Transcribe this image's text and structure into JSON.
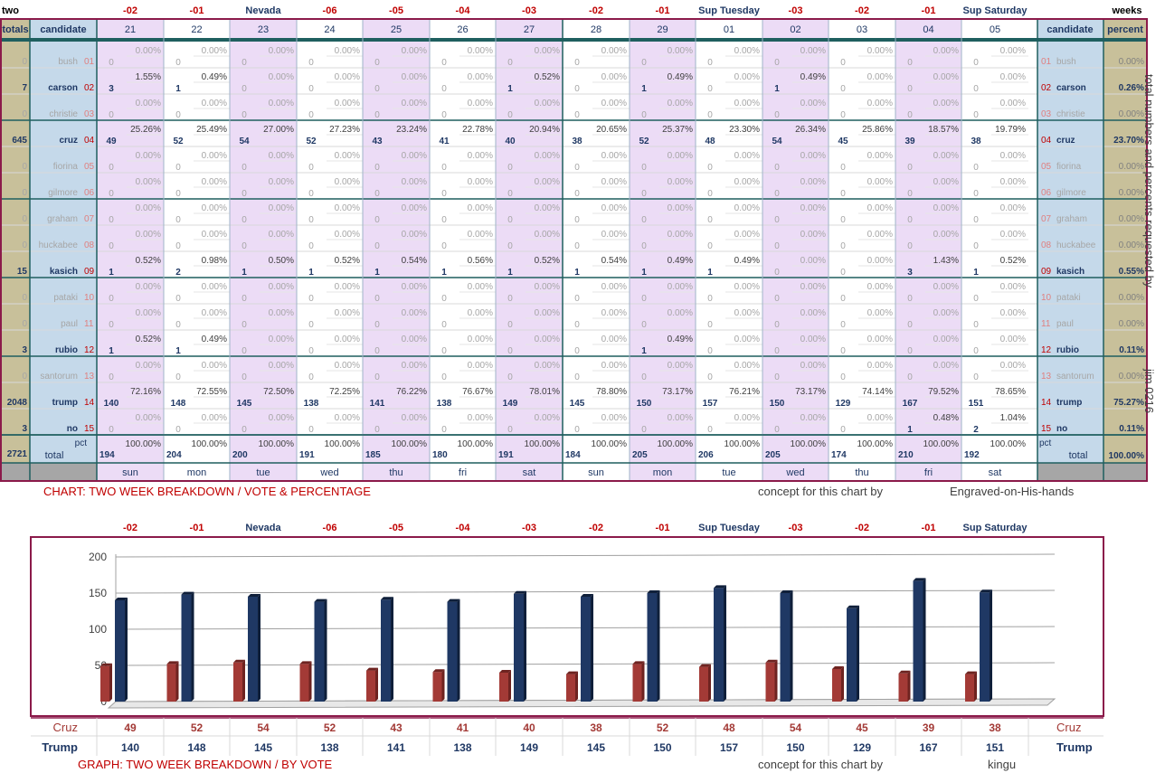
{
  "top_left_label": "two",
  "top_right_label": "weeks",
  "day_headers": [
    "-02",
    "-01",
    "Nevada",
    "-06",
    "-05",
    "-04",
    "-03",
    "-02",
    "-01",
    "Sup Tuesday",
    "-03",
    "-02",
    "-01",
    "Sup Saturday"
  ],
  "day_numbers": [
    "21",
    "22",
    "23",
    "24",
    "25",
    "26",
    "27",
    "28",
    "29",
    "01",
    "02",
    "03",
    "04",
    "05"
  ],
  "weekdays": [
    "sun",
    "mon",
    "tue",
    "wed",
    "thu",
    "fri",
    "sat",
    "sun",
    "mon",
    "tue",
    "wed",
    "thu",
    "fri",
    "sat"
  ],
  "col_headers": {
    "totals": "totals",
    "candidate": "candidate",
    "candidate_right": "candidate",
    "percent": "percent"
  },
  "candidates": [
    {
      "name": "bush",
      "num": "01",
      "total": "0",
      "percent": "0.00%",
      "active": false,
      "votes": [
        "0",
        "0",
        "0",
        "0",
        "0",
        "0",
        "0",
        "0",
        "0",
        "0",
        "0",
        "0",
        "0",
        "0"
      ],
      "pcts": [
        "0.00%",
        "0.00%",
        "0.00%",
        "0.00%",
        "0.00%",
        "0.00%",
        "0.00%",
        "0.00%",
        "0.00%",
        "0.00%",
        "0.00%",
        "0.00%",
        "0.00%",
        "0.00%"
      ]
    },
    {
      "name": "carson",
      "num": "02",
      "total": "7",
      "percent": "0.26%",
      "active": true,
      "votes": [
        "3",
        "1",
        "0",
        "0",
        "0",
        "0",
        "1",
        "0",
        "1",
        "0",
        "1",
        "0",
        "0",
        "0"
      ],
      "pcts": [
        "1.55%",
        "0.49%",
        "0.00%",
        "0.00%",
        "0.00%",
        "0.00%",
        "0.52%",
        "0.00%",
        "0.49%",
        "0.00%",
        "0.49%",
        "0.00%",
        "0.00%",
        "0.00%"
      ]
    },
    {
      "name": "christie",
      "num": "03",
      "total": "0",
      "percent": "0.00%",
      "active": false,
      "votes": [
        "0",
        "0",
        "0",
        "0",
        "0",
        "0",
        "0",
        "0",
        "0",
        "0",
        "0",
        "0",
        "0",
        "0"
      ],
      "pcts": [
        "0.00%",
        "0.00%",
        "0.00%",
        "0.00%",
        "0.00%",
        "0.00%",
        "0.00%",
        "0.00%",
        "0.00%",
        "0.00%",
        "0.00%",
        "0.00%",
        "0.00%",
        "0.00%"
      ]
    },
    {
      "name": "cruz",
      "num": "04",
      "total": "645",
      "percent": "23.70%",
      "active": true,
      "votes": [
        "49",
        "52",
        "54",
        "52",
        "43",
        "41",
        "40",
        "38",
        "52",
        "48",
        "54",
        "45",
        "39",
        "38"
      ],
      "pcts": [
        "25.26%",
        "25.49%",
        "27.00%",
        "27.23%",
        "23.24%",
        "22.78%",
        "20.94%",
        "20.65%",
        "25.37%",
        "23.30%",
        "26.34%",
        "25.86%",
        "18.57%",
        "19.79%"
      ]
    },
    {
      "name": "fiorina",
      "num": "05",
      "total": "0",
      "percent": "0.00%",
      "active": false,
      "votes": [
        "0",
        "0",
        "0",
        "0",
        "0",
        "0",
        "0",
        "0",
        "0",
        "0",
        "0",
        "0",
        "0",
        "0"
      ],
      "pcts": [
        "0.00%",
        "0.00%",
        "0.00%",
        "0.00%",
        "0.00%",
        "0.00%",
        "0.00%",
        "0.00%",
        "0.00%",
        "0.00%",
        "0.00%",
        "0.00%",
        "0.00%",
        "0.00%"
      ]
    },
    {
      "name": "gilmore",
      "num": "06",
      "total": "0",
      "percent": "0.00%",
      "active": false,
      "votes": [
        "0",
        "0",
        "0",
        "0",
        "0",
        "0",
        "0",
        "0",
        "0",
        "0",
        "0",
        "0",
        "0",
        "0"
      ],
      "pcts": [
        "0.00%",
        "0.00%",
        "0.00%",
        "0.00%",
        "0.00%",
        "0.00%",
        "0.00%",
        "0.00%",
        "0.00%",
        "0.00%",
        "0.00%",
        "0.00%",
        "0.00%",
        "0.00%"
      ]
    },
    {
      "name": "graham",
      "num": "07",
      "total": "0",
      "percent": "0.00%",
      "active": false,
      "votes": [
        "0",
        "0",
        "0",
        "0",
        "0",
        "0",
        "0",
        "0",
        "0",
        "0",
        "0",
        "0",
        "0",
        "0"
      ],
      "pcts": [
        "0.00%",
        "0.00%",
        "0.00%",
        "0.00%",
        "0.00%",
        "0.00%",
        "0.00%",
        "0.00%",
        "0.00%",
        "0.00%",
        "0.00%",
        "0.00%",
        "0.00%",
        "0.00%"
      ]
    },
    {
      "name": "huckabee",
      "num": "08",
      "total": "0",
      "percent": "0.00%",
      "active": false,
      "votes": [
        "0",
        "0",
        "0",
        "0",
        "0",
        "0",
        "0",
        "0",
        "0",
        "0",
        "0",
        "0",
        "0",
        "0"
      ],
      "pcts": [
        "0.00%",
        "0.00%",
        "0.00%",
        "0.00%",
        "0.00%",
        "0.00%",
        "0.00%",
        "0.00%",
        "0.00%",
        "0.00%",
        "0.00%",
        "0.00%",
        "0.00%",
        "0.00%"
      ]
    },
    {
      "name": "kasich",
      "num": "09",
      "total": "15",
      "percent": "0.55%",
      "active": true,
      "votes": [
        "1",
        "2",
        "1",
        "1",
        "1",
        "1",
        "1",
        "1",
        "1",
        "1",
        "0",
        "0",
        "3",
        "1"
      ],
      "pcts": [
        "0.52%",
        "0.98%",
        "0.50%",
        "0.52%",
        "0.54%",
        "0.56%",
        "0.52%",
        "0.54%",
        "0.49%",
        "0.49%",
        "0.00%",
        "0.00%",
        "1.43%",
        "0.52%"
      ]
    },
    {
      "name": "pataki",
      "num": "10",
      "total": "0",
      "percent": "0.00%",
      "active": false,
      "votes": [
        "0",
        "0",
        "0",
        "0",
        "0",
        "0",
        "0",
        "0",
        "0",
        "0",
        "0",
        "0",
        "0",
        "0"
      ],
      "pcts": [
        "0.00%",
        "0.00%",
        "0.00%",
        "0.00%",
        "0.00%",
        "0.00%",
        "0.00%",
        "0.00%",
        "0.00%",
        "0.00%",
        "0.00%",
        "0.00%",
        "0.00%",
        "0.00%"
      ]
    },
    {
      "name": "paul",
      "num": "11",
      "total": "0",
      "percent": "0.00%",
      "active": false,
      "votes": [
        "0",
        "0",
        "0",
        "0",
        "0",
        "0",
        "0",
        "0",
        "0",
        "0",
        "0",
        "0",
        "0",
        "0"
      ],
      "pcts": [
        "0.00%",
        "0.00%",
        "0.00%",
        "0.00%",
        "0.00%",
        "0.00%",
        "0.00%",
        "0.00%",
        "0.00%",
        "0.00%",
        "0.00%",
        "0.00%",
        "0.00%",
        "0.00%"
      ]
    },
    {
      "name": "rubio",
      "num": "12",
      "total": "3",
      "percent": "0.11%",
      "active": true,
      "votes": [
        "1",
        "1",
        "0",
        "0",
        "0",
        "0",
        "0",
        "0",
        "1",
        "0",
        "0",
        "0",
        "0",
        "0"
      ],
      "pcts": [
        "0.52%",
        "0.49%",
        "0.00%",
        "0.00%",
        "0.00%",
        "0.00%",
        "0.00%",
        "0.00%",
        "0.49%",
        "0.00%",
        "0.00%",
        "0.00%",
        "0.00%",
        "0.00%"
      ]
    },
    {
      "name": "santorum",
      "num": "13",
      "total": "0",
      "percent": "0.00%",
      "active": false,
      "votes": [
        "0",
        "0",
        "0",
        "0",
        "0",
        "0",
        "0",
        "0",
        "0",
        "0",
        "0",
        "0",
        "0",
        "0"
      ],
      "pcts": [
        "0.00%",
        "0.00%",
        "0.00%",
        "0.00%",
        "0.00%",
        "0.00%",
        "0.00%",
        "0.00%",
        "0.00%",
        "0.00%",
        "0.00%",
        "0.00%",
        "0.00%",
        "0.00%"
      ]
    },
    {
      "name": "trump",
      "num": "14",
      "total": "2048",
      "percent": "75.27%",
      "active": true,
      "votes": [
        "140",
        "148",
        "145",
        "138",
        "141",
        "138",
        "149",
        "145",
        "150",
        "157",
        "150",
        "129",
        "167",
        "151"
      ],
      "pcts": [
        "72.16%",
        "72.55%",
        "72.50%",
        "72.25%",
        "76.22%",
        "76.67%",
        "78.01%",
        "78.80%",
        "73.17%",
        "76.21%",
        "73.17%",
        "74.14%",
        "79.52%",
        "78.65%"
      ]
    },
    {
      "name": "no",
      "num": "15",
      "total": "3",
      "percent": "0.11%",
      "active": true,
      "votes": [
        "0",
        "0",
        "0",
        "0",
        "0",
        "0",
        "0",
        "0",
        "0",
        "0",
        "0",
        "0",
        "1",
        "2"
      ],
      "pcts": [
        "0.00%",
        "0.00%",
        "0.00%",
        "0.00%",
        "0.00%",
        "0.00%",
        "0.00%",
        "0.00%",
        "0.00%",
        "0.00%",
        "0.00%",
        "0.00%",
        "0.48%",
        "1.04%"
      ]
    }
  ],
  "total_row": {
    "total": "2721",
    "label": "total",
    "pct_label": "pct",
    "percent": "100.00%",
    "votes": [
      "194",
      "204",
      "200",
      "191",
      "185",
      "180",
      "191",
      "184",
      "205",
      "206",
      "205",
      "174",
      "210",
      "192"
    ],
    "pcts": [
      "100.00%",
      "100.00%",
      "100.00%",
      "100.00%",
      "100.00%",
      "100.00%",
      "100.00%",
      "100.00%",
      "100.00%",
      "100.00%",
      "100.00%",
      "100.00%",
      "100.00%",
      "100.00%"
    ]
  },
  "side_note": "total numbers and percents requested by",
  "side_note_name": "jim 0216",
  "footer_table": {
    "title": "CHART: TWO WEEK BREAKDOWN / VOTE & PERCENTAGE",
    "concept": "concept for this chart by",
    "author": "Engraved-on-His-hands"
  },
  "footer_graph": {
    "title": "GRAPH: TWO WEEK BREAKDOWN / BY VOTE",
    "concept": "concept for this chart by",
    "author": "kingu"
  },
  "colors": {
    "cruz": "#a33a36",
    "trump": "#1f3864",
    "frame": "#8b1a4a",
    "teal": "#1f5f5f",
    "pink": "#ecdcf6",
    "blue": "#c5d9ea",
    "tan": "#c8c09a"
  },
  "chart_data": {
    "type": "bar",
    "categories": [
      "-02",
      "-01",
      "Nevada",
      "-06",
      "-05",
      "-04",
      "-03",
      "-02",
      "-01",
      "Sup Tuesday",
      "-03",
      "-02",
      "-01",
      "Sup Saturday"
    ],
    "series": [
      {
        "name": "Cruz",
        "values": [
          49,
          52,
          54,
          52,
          43,
          41,
          40,
          38,
          52,
          48,
          54,
          45,
          39,
          38
        ]
      },
      {
        "name": "Trump",
        "values": [
          140,
          148,
          145,
          138,
          141,
          138,
          149,
          145,
          150,
          157,
          150,
          129,
          167,
          151
        ]
      }
    ],
    "yticks": [
      0,
      50,
      100,
      150,
      200
    ],
    "ylim": [
      0,
      200
    ],
    "grid": true
  }
}
